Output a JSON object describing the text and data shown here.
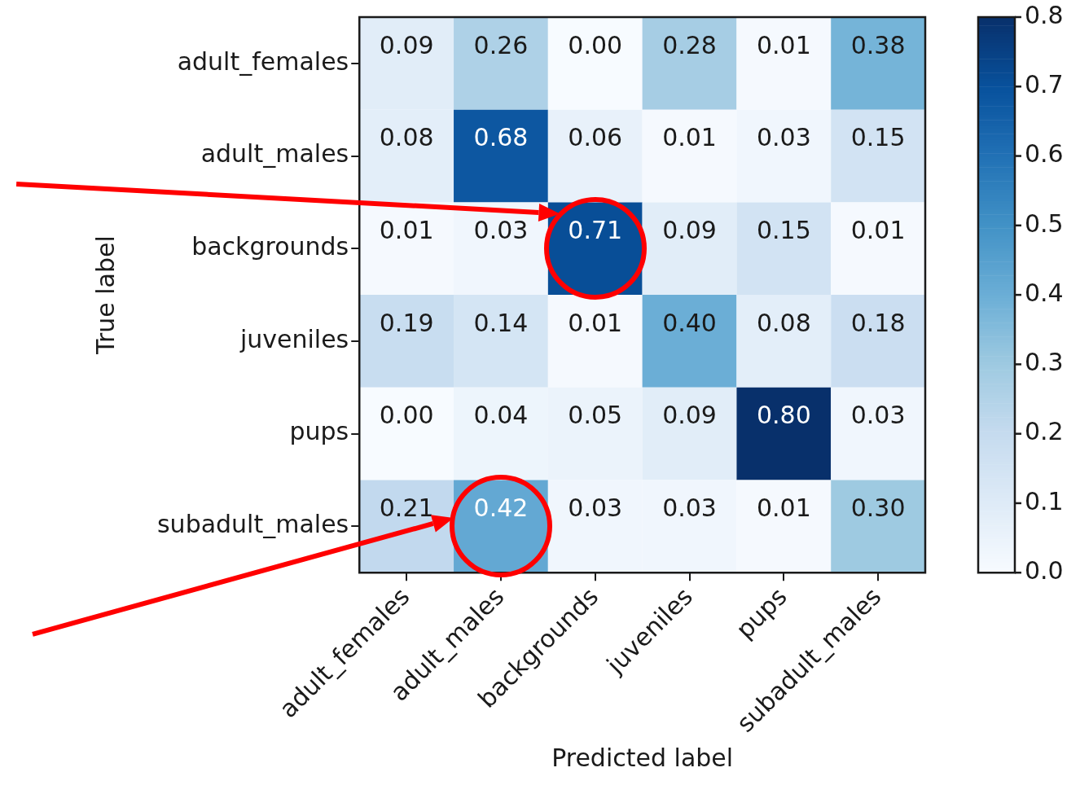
{
  "chart_data": {
    "type": "heatmap",
    "xlabel": "Predicted label",
    "ylabel": "True label",
    "categories": [
      "adult_females",
      "adult_males",
      "backgrounds",
      "juveniles",
      "pups",
      "subadult_males"
    ],
    "y_categories": [
      "adult_females",
      "adult_males",
      "backgrounds",
      "juveniles",
      "pups",
      "subadult_males"
    ],
    "cells": [
      [
        0.09,
        0.26,
        0.0,
        0.28,
        0.01,
        0.38
      ],
      [
        0.08,
        0.68,
        0.06,
        0.01,
        0.03,
        0.15
      ],
      [
        0.01,
        0.03,
        0.71,
        0.09,
        0.15,
        0.01
      ],
      [
        0.19,
        0.14,
        0.01,
        0.4,
        0.08,
        0.18
      ],
      [
        0.0,
        0.04,
        0.05,
        0.09,
        0.8,
        0.03
      ],
      [
        0.21,
        0.42,
        0.03,
        0.03,
        0.01,
        0.3
      ]
    ],
    "cell_labels": [
      [
        "0.09",
        "0.26",
        "0.00",
        "0.28",
        "0.01",
        "0.38"
      ],
      [
        "0.08",
        "0.68",
        "0.06",
        "0.01",
        "0.03",
        "0.15"
      ],
      [
        "0.01",
        "0.03",
        "0.71",
        "0.09",
        "0.15",
        "0.01"
      ],
      [
        "0.19",
        "0.14",
        "0.01",
        "0.40",
        "0.08",
        "0.18"
      ],
      [
        "0.00",
        "0.04",
        "0.05",
        "0.09",
        "0.80",
        "0.03"
      ],
      [
        "0.21",
        "0.42",
        "0.03",
        "0.03",
        "0.01",
        "0.30"
      ]
    ],
    "clim": [
      0,
      0.8
    ],
    "cticks": [
      {
        "value": 0,
        "label": "0.0"
      },
      {
        "value": 0.1,
        "label": "0.1"
      },
      {
        "value": 0.2,
        "label": "0.2"
      },
      {
        "value": 0.3,
        "label": "0.3"
      },
      {
        "value": 0.4,
        "label": "0.4"
      },
      {
        "value": 0.5,
        "label": "0.5"
      },
      {
        "value": 0.6,
        "label": "0.6"
      },
      {
        "value": 0.7,
        "label": "0.7"
      },
      {
        "value": 0.8,
        "label": "0.8"
      }
    ],
    "data_labels": true
  }
}
